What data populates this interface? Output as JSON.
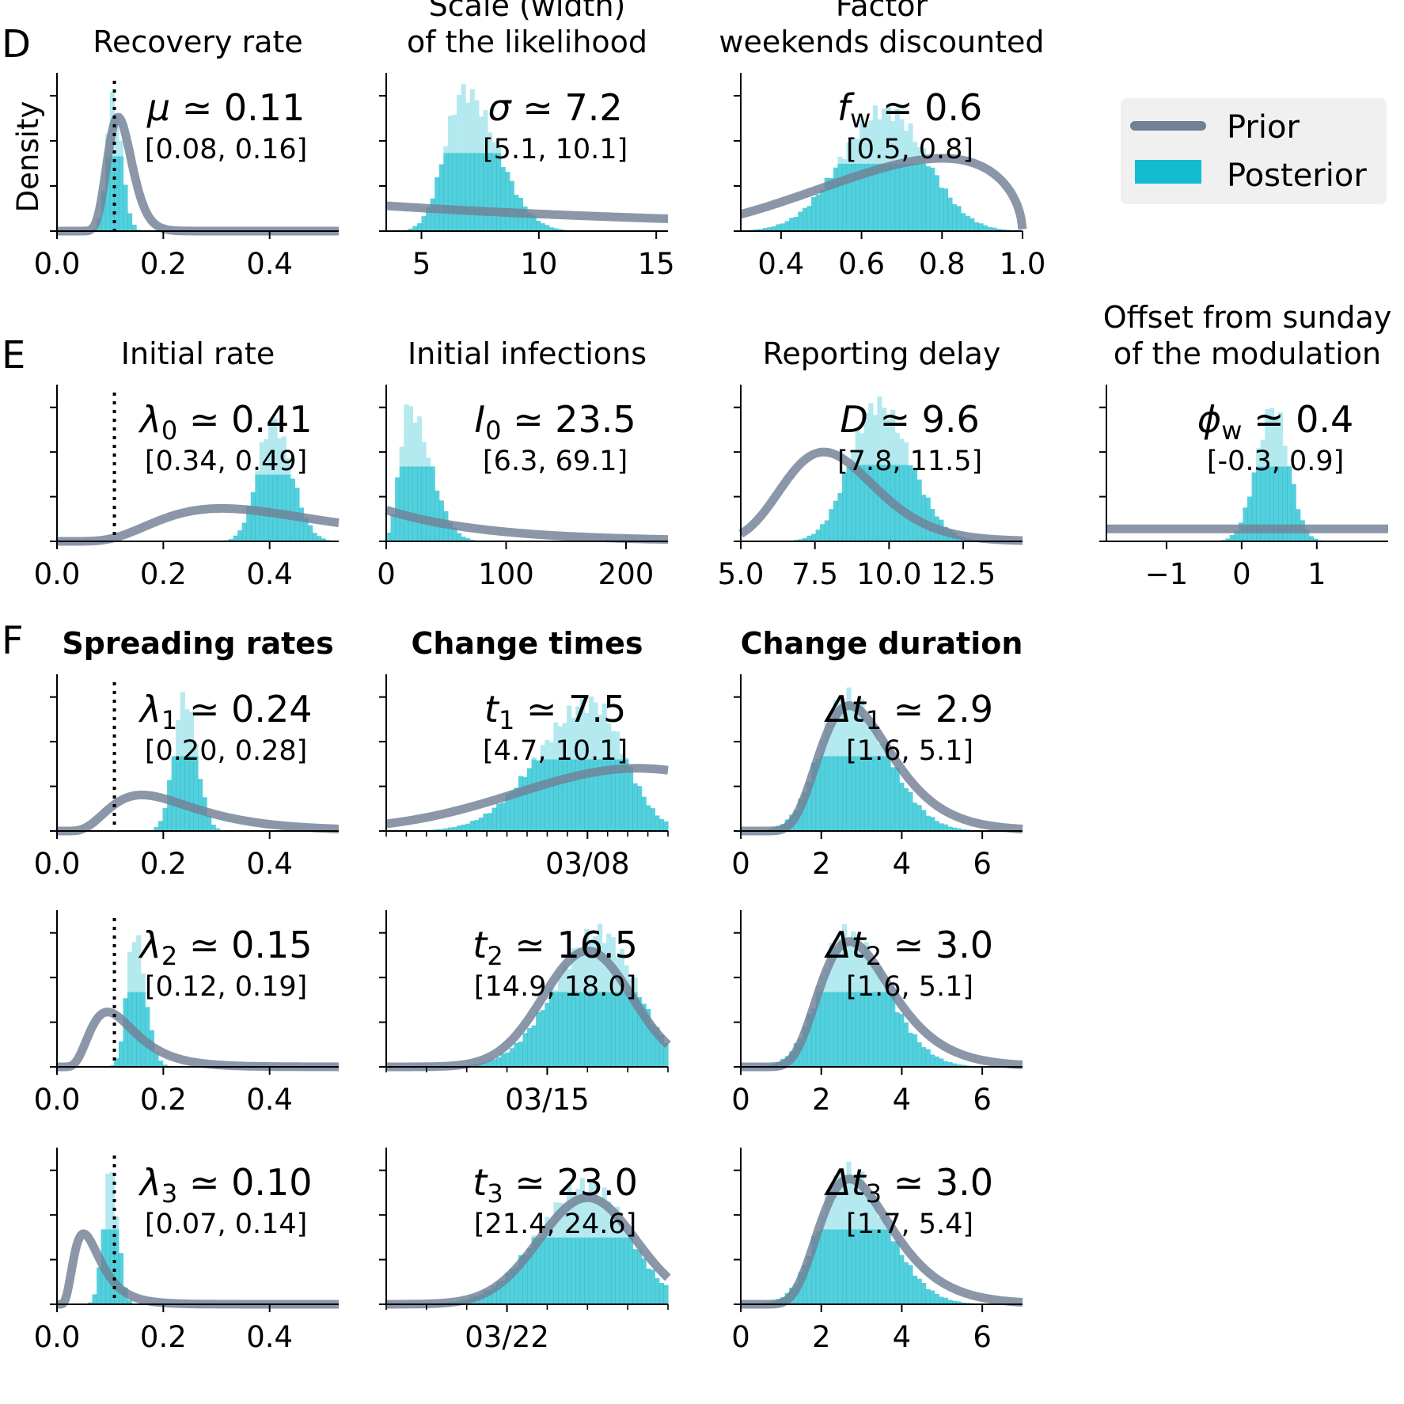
{
  "colors": {
    "prior": "#718096",
    "posterior": "#14BCCF",
    "posterior_light": "#B0E8EE",
    "legend_bg": "#F0F0F0",
    "reference_line": "#000000"
  },
  "rows": [
    {
      "label": "D"
    },
    {
      "label": "E"
    },
    {
      "label": "F"
    }
  ],
  "ylabel": "Density",
  "legend": {
    "placement": "top-right",
    "prior": "Prior",
    "posterior": "Posterior"
  },
  "chart_data": [
    {
      "type": "histogram_with_prior_curve",
      "title": [
        "Recovery rate"
      ],
      "estimate_symbol": "μ",
      "estimate_sub": "",
      "estimate_value": "≃ 0.11",
      "interval": "[0.08, 0.16]",
      "xlim": [
        0,
        0.53
      ],
      "ticks": [
        0.0,
        0.2,
        0.4
      ],
      "tick_labels": [
        "0.0",
        "0.2",
        "0.4"
      ],
      "ref_line": 0.108,
      "posterior": {
        "mode": 0.105,
        "sd_left": 0.012,
        "sd_right": 0.016,
        "peak": 0.91
      },
      "prior": {
        "kind": "lognormal",
        "mode": 0.115,
        "sigma": 0.2,
        "peak": 0.72
      }
    },
    {
      "type": "histogram_with_prior_curve",
      "title": [
        "Scale (width)",
        "of the likelihood"
      ],
      "estimate_symbol": "σ",
      "estimate_sub": "",
      "estimate_value": "≃ 7.2",
      "interval": "[5.1, 10.1]",
      "xlim": [
        3.5,
        15.5
      ],
      "ticks": [
        5,
        10,
        15
      ],
      "tick_labels": [
        "5",
        "10",
        "15"
      ],
      "ref_line": null,
      "posterior": {
        "mode": 6.8,
        "sd_left": 0.8,
        "sd_right": 1.4,
        "peak": 0.95
      },
      "prior": {
        "kind": "exp_decay",
        "start": 0.16,
        "rate": 0.06,
        "peak": 0.16
      }
    },
    {
      "type": "histogram_with_prior_curve",
      "title": [
        "Factor",
        "weekends discounted"
      ],
      "estimate_symbol": "f",
      "estimate_sub": "w",
      "estimate_value": "≃ 0.6",
      "interval": "[0.5, 0.8]",
      "xlim": [
        0.3,
        1.0
      ],
      "ticks": [
        0.4,
        0.6,
        0.8,
        1.0
      ],
      "tick_labels": [
        "0.4",
        "0.6",
        "0.8",
        "1.0"
      ],
      "ref_line": null,
      "posterior": {
        "mode": 0.66,
        "sd_left": 0.11,
        "sd_right": 0.1,
        "peak": 0.82
      },
      "prior": {
        "kind": "beta_like",
        "a": 3.2,
        "b": 1.55,
        "peak": 0.46
      }
    },
    {
      "type": "histogram_with_prior_curve",
      "title": [
        "Initial rate"
      ],
      "estimate_symbol": "λ",
      "estimate_sub": "0",
      "estimate_value": "≃ 0.41",
      "interval": "[0.34, 0.49]",
      "xlim": [
        0,
        0.53
      ],
      "ticks": [
        0.0,
        0.2,
        0.4
      ],
      "tick_labels": [
        "0.0",
        "0.2",
        "0.4"
      ],
      "ref_line": 0.108,
      "posterior": {
        "mode": 0.405,
        "sd_left": 0.028,
        "sd_right": 0.035,
        "peak": 0.82
      },
      "prior": {
        "kind": "lognormal",
        "mode": 0.31,
        "sigma": 0.5,
        "peak": 0.21
      }
    },
    {
      "type": "histogram_with_prior_curve",
      "title": [
        "Initial infections"
      ],
      "estimate_symbol": "I",
      "estimate_sub": "0",
      "estimate_value": "≃ 23.5",
      "interval": "[6.3, 69.1]",
      "xlim": [
        0,
        235
      ],
      "ticks": [
        0,
        100,
        200
      ],
      "tick_labels": [
        "0",
        "100",
        "200"
      ],
      "ref_line": null,
      "posterior": {
        "mode": 18,
        "sd_left": 7,
        "sd_right": 18,
        "peak": 0.92
      },
      "prior": {
        "kind": "exp_decay",
        "start": 0.2,
        "rate": 0.012,
        "peak": 0.2
      }
    },
    {
      "type": "histogram_with_prior_curve",
      "title": [
        "Reporting delay"
      ],
      "estimate_symbol": "D",
      "estimate_sub": "",
      "estimate_value": "≃ 9.6",
      "interval": "[7.8, 11.5]",
      "xlim": [
        5.0,
        14.5
      ],
      "ticks": [
        5.0,
        7.5,
        10.0,
        12.5
      ],
      "tick_labels": [
        "5.0",
        "7.5",
        "10.0",
        "12.5"
      ],
      "ref_line": null,
      "posterior": {
        "mode": 9.6,
        "sd_left": 0.9,
        "sd_right": 1.1,
        "peak": 0.94
      },
      "prior": {
        "kind": "lognormal",
        "mode": 7.8,
        "sigma": 0.2,
        "peak": 0.57
      }
    },
    {
      "type": "histogram_with_prior_curve",
      "title": [
        "Offset from sunday",
        "of the modulation"
      ],
      "estimate_symbol": "ϕ",
      "estimate_sub": "w",
      "estimate_value": "≃ 0.4",
      "interval": "[-0.3, 0.9]",
      "xlim": [
        -1.8,
        1.95
      ],
      "ticks": [
        -1,
        0,
        1
      ],
      "tick_labels": [
        "−1",
        "0",
        "1"
      ],
      "ref_line": null,
      "posterior": {
        "mode": 0.42,
        "sd_left": 0.22,
        "sd_right": 0.2,
        "peak": 0.92
      },
      "prior": {
        "kind": "flat",
        "level": 0.08,
        "peak": 0.08
      }
    },
    {
      "type": "histogram_with_prior_curve",
      "title": [
        "Spreading rates"
      ],
      "bold_title": true,
      "estimate_symbol": "λ",
      "estimate_sub": "1",
      "estimate_value": "≃ 0.24",
      "interval": "[0.20, 0.28]",
      "xlim": [
        0,
        0.53
      ],
      "ticks": [
        0.0,
        0.2,
        0.4
      ],
      "tick_labels": [
        "0.0",
        "0.2",
        "0.4"
      ],
      "ref_line": 0.108,
      "posterior": {
        "mode": 0.24,
        "sd_left": 0.02,
        "sd_right": 0.022,
        "peak": 0.92
      },
      "prior": {
        "kind": "lognormal",
        "mode": 0.16,
        "sigma": 0.5,
        "peak": 0.23
      }
    },
    {
      "type": "histogram_with_prior_curve",
      "title": [
        "Change times"
      ],
      "bold_title": true,
      "estimate_symbol": "t",
      "estimate_sub": "1",
      "estimate_value": "≃ 7.5",
      "interval": "[4.7, 10.1]",
      "xlim": [
        -3.0,
        11.0
      ],
      "ticks": [
        7.0
      ],
      "tick_labels": [
        "03/08"
      ],
      "minor_ticks": [
        -3,
        -2,
        -1,
        0,
        1,
        2,
        3,
        4,
        5,
        6,
        7,
        8,
        9,
        10,
        11
      ],
      "ref_line": null,
      "posterior": {
        "mode": 7.2,
        "sd_left": 2.6,
        "sd_right": 1.6,
        "peak": 0.88
      },
      "prior": {
        "kind": "normal",
        "mean": 9.5,
        "sd": 6.0,
        "peak": 0.4
      }
    },
    {
      "type": "histogram_with_prior_curve",
      "title": [
        "Change duration"
      ],
      "bold_title": true,
      "estimate_symbol": "Δt",
      "estimate_sub": "1",
      "estimate_value": "≃ 2.9",
      "interval": "[1.6, 5.1]",
      "xlim": [
        0,
        7
      ],
      "ticks": [
        0,
        2,
        4,
        6
      ],
      "tick_labels": [
        "0",
        "2",
        "4",
        "6"
      ],
      "ref_line": null,
      "posterior": {
        "mode": 2.6,
        "sd_left": 0.65,
        "sd_right": 1.0,
        "peak": 0.92
      },
      "prior": {
        "kind": "lognormal",
        "mode": 2.7,
        "sigma": 0.33,
        "peak": 0.8
      }
    },
    {
      "type": "histogram_with_prior_curve",
      "title": [],
      "estimate_symbol": "λ",
      "estimate_sub": "2",
      "estimate_value": "≃ 0.15",
      "interval": "[0.12, 0.19]",
      "xlim": [
        0,
        0.53
      ],
      "ticks": [
        0.0,
        0.2,
        0.4
      ],
      "tick_labels": [
        "0.0",
        "0.2",
        "0.4"
      ],
      "ref_line": 0.108,
      "posterior": {
        "mode": 0.145,
        "sd_left": 0.014,
        "sd_right": 0.02,
        "peak": 0.92
      },
      "prior": {
        "kind": "lognormal",
        "mode": 0.095,
        "sigma": 0.45,
        "peak": 0.35
      }
    },
    {
      "type": "histogram_with_prior_curve",
      "title": [],
      "estimate_symbol": "t",
      "estimate_sub": "2",
      "estimate_value": "≃ 16.5",
      "interval": "[14.9, 18.0]",
      "xlim": [
        10.0,
        17.0
      ],
      "ticks": [
        14.0
      ],
      "tick_labels": [
        "03/15"
      ],
      "minor_ticks": [
        10,
        11,
        12,
        13,
        14,
        15,
        16,
        17
      ],
      "ref_line": null,
      "posterior": {
        "mode": 15.3,
        "sd_left": 1.1,
        "sd_right": 0.9,
        "peak": 0.92
      },
      "prior": {
        "kind": "normal",
        "mode": 15.0,
        "sd": 1.1,
        "peak": 0.74
      }
    },
    {
      "type": "histogram_with_prior_curve",
      "title": [],
      "estimate_symbol": "Δt",
      "estimate_sub": "2",
      "estimate_value": "≃ 3.0",
      "interval": "[1.6, 5.1]",
      "xlim": [
        0,
        7
      ],
      "ticks": [
        0,
        2,
        4,
        6
      ],
      "tick_labels": [
        "0",
        "2",
        "4",
        "6"
      ],
      "ref_line": null,
      "posterior": {
        "mode": 2.6,
        "sd_left": 0.65,
        "sd_right": 1.0,
        "peak": 0.92
      },
      "prior": {
        "kind": "lognormal",
        "mode": 2.7,
        "sigma": 0.33,
        "peak": 0.8
      }
    },
    {
      "type": "histogram_with_prior_curve",
      "title": [],
      "estimate_symbol": "λ",
      "estimate_sub": "3",
      "estimate_value": "≃ 0.10",
      "interval": "[0.07, 0.14]",
      "xlim": [
        0,
        0.53
      ],
      "ticks": [
        0.0,
        0.2,
        0.4
      ],
      "tick_labels": [
        "0.0",
        "0.2",
        "0.4"
      ],
      "ref_line": 0.108,
      "posterior": {
        "mode": 0.1,
        "sd_left": 0.013,
        "sd_right": 0.014,
        "peak": 0.92
      },
      "prior": {
        "kind": "lognormal",
        "mode": 0.05,
        "sigma": 0.5,
        "peak": 0.45
      }
    },
    {
      "type": "histogram_with_prior_curve",
      "title": [],
      "estimate_symbol": "t",
      "estimate_sub": "3",
      "estimate_value": "≃ 23.0",
      "interval": "[21.4, 24.6]",
      "xlim": [
        18.0,
        25.0
      ],
      "ticks": [
        21.0
      ],
      "tick_labels": [
        "03/22"
      ],
      "minor_ticks": [
        18,
        19,
        20,
        21,
        22,
        23,
        24,
        25
      ],
      "ref_line": null,
      "posterior": {
        "mode": 23.0,
        "sd_left": 1.2,
        "sd_right": 1.0,
        "peak": 0.82
      },
      "prior": {
        "kind": "normal",
        "mode": 23.0,
        "sd": 1.2,
        "peak": 0.68
      }
    },
    {
      "type": "histogram_with_prior_curve",
      "title": [],
      "estimate_symbol": "Δt",
      "estimate_sub": "3",
      "estimate_value": "≃ 3.0",
      "interval": "[1.7, 5.4]",
      "xlim": [
        0,
        7
      ],
      "ticks": [
        0,
        2,
        4,
        6
      ],
      "tick_labels": [
        "0",
        "2",
        "4",
        "6"
      ],
      "ref_line": null,
      "posterior": {
        "mode": 2.6,
        "sd_left": 0.65,
        "sd_right": 1.0,
        "peak": 0.92
      },
      "prior": {
        "kind": "lognormal",
        "mode": 2.7,
        "sigma": 0.33,
        "peak": 0.8
      }
    }
  ]
}
